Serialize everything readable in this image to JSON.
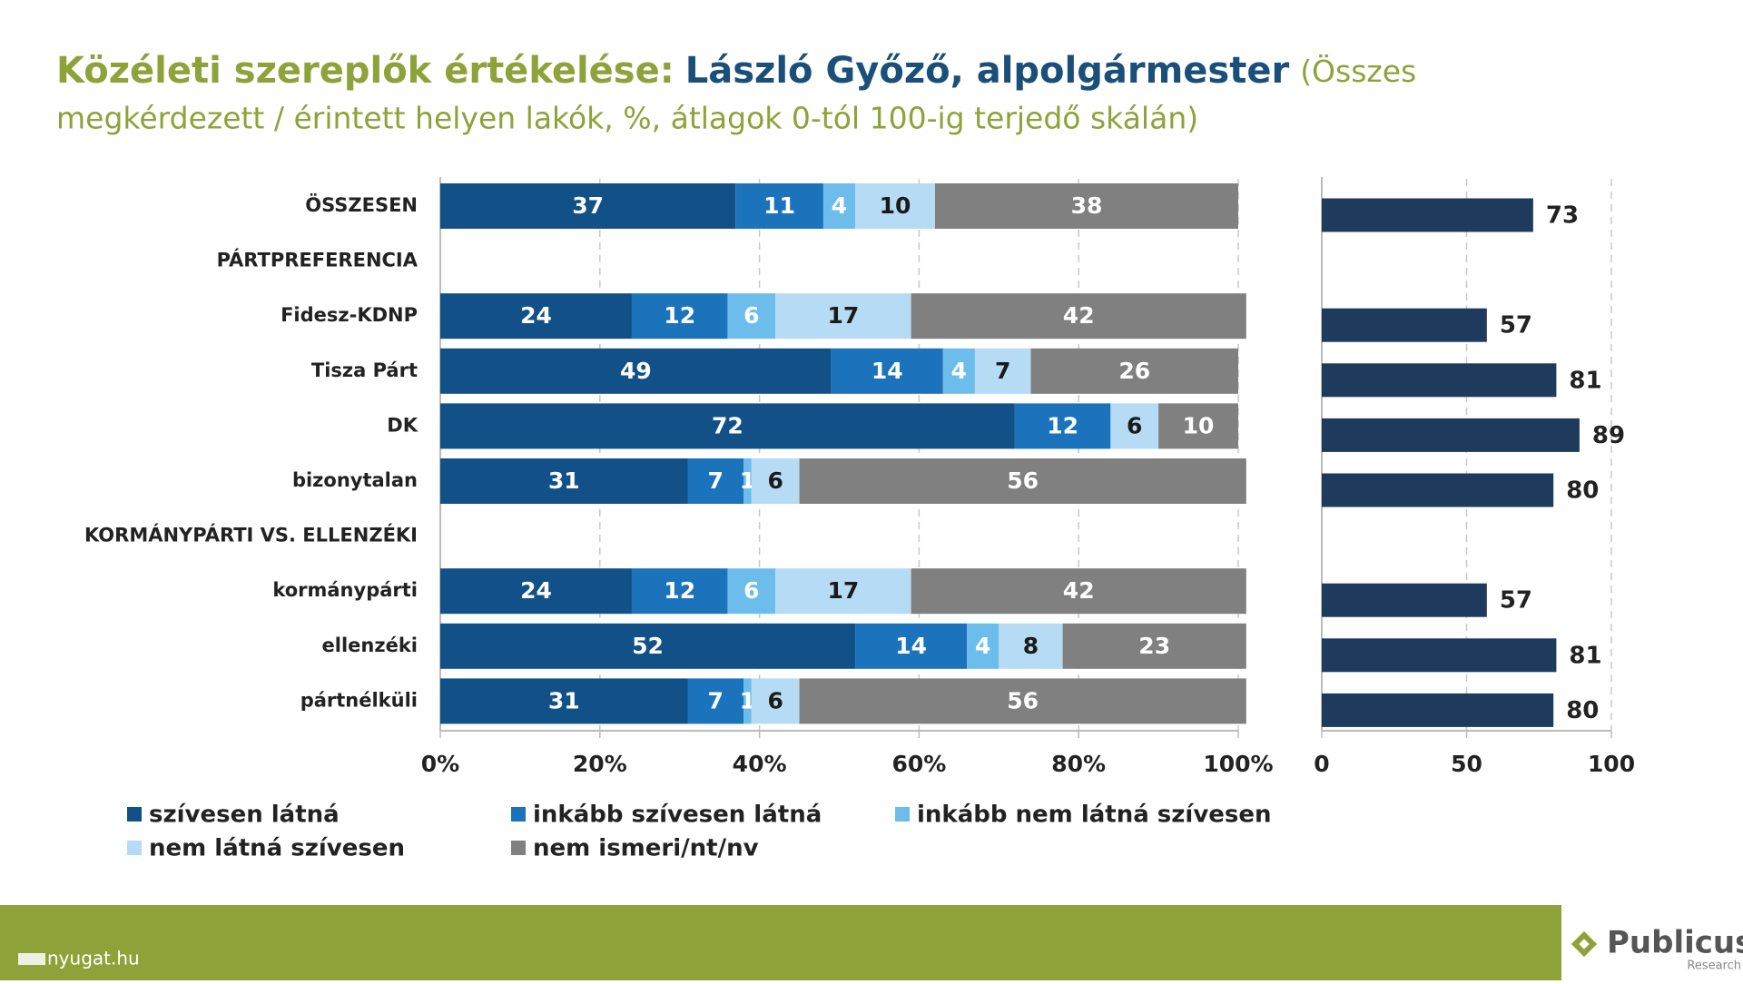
{
  "header": {
    "title_lead": "Közéleti szereplők értékelése:",
    "title_name": "László Győző, alpolgármester",
    "title_note_1": "(Összes",
    "title_note_2": "megkérdezett / érintett helyen lakók, %, átlagok 0-tól 100-ig terjedő skálán)"
  },
  "chart_data": [
    {
      "type": "stacked-bar-horizontal",
      "categories": [
        "ÖSSZESEN",
        "PÁRTPREFERENCIA",
        "Fidesz-KDNP",
        "Tisza Párt",
        "DK",
        "bizonytalan",
        "KORMÁNYPÁRTI VS. ELLENZÉKI",
        "kormánypárti",
        "ellenzéki",
        "pártnélküli"
      ],
      "series": [
        {
          "name": "szívesen látná",
          "color": "#125088",
          "label_color": "#ffffff",
          "values": [
            37,
            null,
            24,
            49,
            72,
            31,
            null,
            24,
            52,
            31
          ]
        },
        {
          "name": "inkább szívesen látná",
          "color": "#1a73bb",
          "label_color": "#ffffff",
          "values": [
            11,
            null,
            12,
            14,
            12,
            7,
            null,
            12,
            14,
            7
          ]
        },
        {
          "name": "inkább nem látná szívesen",
          "color": "#6dbdec",
          "label_color": "#ffffff",
          "values": [
            4,
            null,
            6,
            4,
            null,
            1,
            null,
            6,
            4,
            1
          ]
        },
        {
          "name": "nem látná szívesen",
          "color": "#b5dcf4",
          "label_color": "#1a1a1a",
          "values": [
            10,
            null,
            17,
            7,
            6,
            6,
            null,
            17,
            8,
            6
          ]
        },
        {
          "name": "nem ismeri/nt/nv",
          "color": "#808080",
          "label_color": "#ffffff",
          "values": [
            38,
            null,
            42,
            26,
            10,
            56,
            null,
            42,
            23,
            56
          ]
        }
      ],
      "xlim": [
        0,
        100
      ],
      "xticks": [
        {
          "value": 0,
          "label": "0%"
        },
        {
          "value": 20,
          "label": "20%"
        },
        {
          "value": 40,
          "label": "40%"
        },
        {
          "value": 60,
          "label": "60%"
        },
        {
          "value": 80,
          "label": "80%"
        },
        {
          "value": 100,
          "label": "100%"
        }
      ],
      "grid": true
    },
    {
      "type": "bar-horizontal",
      "values": [
        73,
        null,
        57,
        81,
        89,
        80,
        null,
        57,
        81,
        80
      ],
      "color": "#1e3a5c",
      "xlim": [
        0,
        100
      ],
      "xticks": [
        0,
        50,
        100
      ],
      "grid": true
    }
  ],
  "footer": {
    "source": "nyugat.hu",
    "brand": "Publicus",
    "brand_sub": "Research"
  }
}
